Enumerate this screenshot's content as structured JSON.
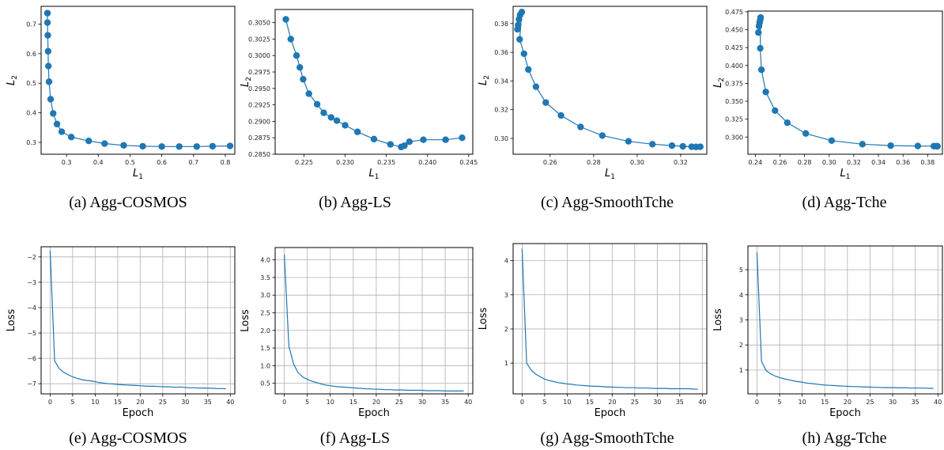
{
  "chart_data": [
    {
      "type": "line",
      "caption": "(a) Agg-COSMOS",
      "xlabel": "L",
      "xlabel_sub": "1",
      "ylabel": "L",
      "ylabel_sub": "2",
      "xlim": [
        0.22,
        0.83
      ],
      "ylim": [
        0.26,
        0.76
      ],
      "xticks": [
        0.3,
        0.4,
        0.5,
        0.6,
        0.7,
        0.8
      ],
      "yticks": [
        0.3,
        0.4,
        0.5,
        0.6,
        0.7
      ],
      "xtick_labels": [
        "0.3",
        "0.4",
        "0.5",
        "0.6",
        "0.7",
        "0.8"
      ],
      "ytick_labels": [
        "0.3",
        "0.4",
        "0.5",
        "0.6",
        "0.7"
      ],
      "grid": false,
      "markers": true,
      "color": "#1f77b4",
      "x": [
        0.24,
        0.24,
        0.241,
        0.242,
        0.243,
        0.245,
        0.25,
        0.258,
        0.27,
        0.285,
        0.315,
        0.37,
        0.42,
        0.48,
        0.54,
        0.6,
        0.655,
        0.71,
        0.76,
        0.815
      ],
      "y": [
        0.737,
        0.705,
        0.662,
        0.608,
        0.558,
        0.505,
        0.446,
        0.398,
        0.362,
        0.336,
        0.318,
        0.305,
        0.296,
        0.29,
        0.287,
        0.286,
        0.286,
        0.286,
        0.287,
        0.288
      ]
    },
    {
      "type": "line",
      "caption": "(b) Agg-LS",
      "xlabel": "L",
      "xlabel_sub": "1",
      "ylabel": "L",
      "ylabel_sub": "2",
      "xlim": [
        0.2215,
        0.2455
      ],
      "ylim": [
        0.285,
        0.307
      ],
      "xticks": [
        0.225,
        0.23,
        0.235,
        0.24,
        0.245
      ],
      "yticks": [
        0.285,
        0.2875,
        0.29,
        0.2925,
        0.295,
        0.2975,
        0.3,
        0.3025,
        0.305
      ],
      "xtick_labels": [
        "0.225",
        "0.230",
        "0.235",
        "0.240",
        "0.245"
      ],
      "ytick_labels": [
        "0.2850",
        "0.2875",
        "0.2900",
        "0.2925",
        "0.2950",
        "0.2975",
        "0.3000",
        "0.3025",
        "0.3050"
      ],
      "grid": false,
      "markers": true,
      "color": "#1f77b4",
      "x": [
        0.2228,
        0.2234,
        0.2241,
        0.2245,
        0.2249,
        0.2256,
        0.2266,
        0.2274,
        0.2283,
        0.229,
        0.23,
        0.2315,
        0.2335,
        0.2355,
        0.2368,
        0.2372,
        0.2378,
        0.2395,
        0.2422,
        0.2442
      ],
      "y": [
        0.3055,
        0.3025,
        0.3,
        0.2982,
        0.2964,
        0.2942,
        0.2926,
        0.2913,
        0.2906,
        0.2901,
        0.2894,
        0.2884,
        0.2873,
        0.2865,
        0.2861,
        0.2863,
        0.2869,
        0.2872,
        0.2872,
        0.2875
      ]
    },
    {
      "type": "line",
      "caption": "(c) Agg-SmoothTche",
      "xlabel": "L",
      "xlabel_sub": "1",
      "ylabel": "L",
      "ylabel_sub": "2",
      "xlim": [
        0.243,
        0.332
      ],
      "ylim": [
        0.289,
        0.392
      ],
      "xticks": [
        0.26,
        0.28,
        0.3,
        0.32
      ],
      "yticks": [
        0.3,
        0.32,
        0.34,
        0.36,
        0.38
      ],
      "xtick_labels": [
        "0.26",
        "0.28",
        "0.30",
        "0.32"
      ],
      "ytick_labels": [
        "0.30",
        "0.32",
        "0.34",
        "0.36",
        "0.38"
      ],
      "grid": false,
      "markers": true,
      "color": "#1f77b4",
      "x": [
        0.245,
        0.2453,
        0.2457,
        0.2462,
        0.247,
        0.246,
        0.248,
        0.25,
        0.2535,
        0.258,
        0.265,
        0.274,
        0.284,
        0.296,
        0.307,
        0.316,
        0.321,
        0.325,
        0.327,
        0.329
      ],
      "y": [
        0.376,
        0.379,
        0.383,
        0.386,
        0.388,
        0.369,
        0.359,
        0.348,
        0.336,
        0.325,
        0.316,
        0.308,
        0.302,
        0.298,
        0.296,
        0.295,
        0.2945,
        0.2942,
        0.2941,
        0.2942
      ]
    },
    {
      "type": "line",
      "caption": "(d) Agg-Tche",
      "xlabel": "L",
      "xlabel_sub": "1",
      "ylabel": "L",
      "ylabel_sub": "2",
      "xlim": [
        0.234,
        0.392
      ],
      "ylim": [
        0.276,
        0.476
      ],
      "xticks": [
        0.24,
        0.26,
        0.28,
        0.3,
        0.32,
        0.34,
        0.36,
        0.38
      ],
      "yticks": [
        0.3,
        0.325,
        0.35,
        0.375,
        0.4,
        0.425,
        0.45,
        0.475
      ],
      "xtick_labels": [
        "0.24",
        "0.26",
        "0.28",
        "0.30",
        "0.32",
        "0.34",
        "0.36",
        "0.38"
      ],
      "ytick_labels": [
        "0.300",
        "0.325",
        "0.350",
        "0.375",
        "0.400",
        "0.425",
        "0.450",
        "0.475"
      ],
      "grid": false,
      "markers": true,
      "color": "#1f77b4",
      "x": [
        0.2425,
        0.243,
        0.2435,
        0.244,
        0.2443,
        0.244,
        0.245,
        0.2485,
        0.256,
        0.266,
        0.281,
        0.302,
        0.327,
        0.35,
        0.372,
        0.385,
        0.387,
        0.388
      ],
      "y": [
        0.446,
        0.455,
        0.46,
        0.464,
        0.467,
        0.424,
        0.394,
        0.363,
        0.337,
        0.32,
        0.305,
        0.295,
        0.29,
        0.288,
        0.2875,
        0.2873,
        0.2872,
        0.2871
      ]
    },
    {
      "type": "line",
      "caption": "(e) Agg-COSMOS",
      "xlabel": "Epoch",
      "ylabel": "Loss",
      "xlim": [
        -2,
        41
      ],
      "ylim": [
        -7.4,
        -1.6
      ],
      "xticks": [
        0,
        5,
        10,
        15,
        20,
        25,
        30,
        35,
        40
      ],
      "yticks": [
        -7,
        -6,
        -5,
        -4,
        -3,
        -2
      ],
      "xtick_labels": [
        "0",
        "5",
        "10",
        "15",
        "20",
        "25",
        "30",
        "35",
        "40"
      ],
      "ytick_labels": [
        "−7",
        "−6",
        "−5",
        "−4",
        "−3",
        "−2"
      ],
      "grid": true,
      "markers": false,
      "color": "#1f77b4",
      "x": [
        0,
        1,
        2,
        3,
        4,
        5,
        6,
        7,
        8,
        9,
        10,
        11,
        12,
        13,
        14,
        15,
        16,
        17,
        18,
        19,
        20,
        21,
        22,
        23,
        24,
        25,
        26,
        27,
        28,
        29,
        30,
        31,
        32,
        33,
        34,
        35,
        36,
        37,
        38,
        39
      ],
      "y": [
        -1.75,
        -6.1,
        -6.4,
        -6.55,
        -6.65,
        -6.73,
        -6.79,
        -6.84,
        -6.87,
        -6.89,
        -6.92,
        -6.96,
        -6.98,
        -7.0,
        -7.01,
        -7.03,
        -7.04,
        -7.05,
        -7.06,
        -7.07,
        -7.08,
        -7.09,
        -7.1,
        -7.1,
        -7.11,
        -7.12,
        -7.12,
        -7.13,
        -7.14,
        -7.13,
        -7.15,
        -7.16,
        -7.16,
        -7.17,
        -7.17,
        -7.18,
        -7.18,
        -7.19,
        -7.19,
        -7.2
      ]
    },
    {
      "type": "line",
      "caption": "(f) Agg-LS",
      "xlabel": "Epoch",
      "ylabel": "Loss",
      "xlim": [
        -2,
        41
      ],
      "ylim": [
        0.2,
        4.35
      ],
      "xticks": [
        0,
        5,
        10,
        15,
        20,
        25,
        30,
        35,
        40
      ],
      "yticks": [
        0.5,
        1.0,
        1.5,
        2.0,
        2.5,
        3.0,
        3.5,
        4.0
      ],
      "xtick_labels": [
        "0",
        "5",
        "10",
        "15",
        "20",
        "25",
        "30",
        "35",
        "40"
      ],
      "ytick_labels": [
        "0.5",
        "1.0",
        "1.5",
        "2.0",
        "2.5",
        "3.0",
        "3.5",
        "4.0"
      ],
      "grid": true,
      "markers": false,
      "color": "#1f77b4",
      "x": [
        0,
        1,
        2,
        3,
        4,
        5,
        6,
        7,
        8,
        9,
        10,
        11,
        12,
        13,
        14,
        15,
        16,
        17,
        18,
        19,
        20,
        21,
        22,
        23,
        24,
        25,
        26,
        27,
        28,
        29,
        30,
        31,
        32,
        33,
        34,
        35,
        36,
        37,
        38,
        39
      ],
      "y": [
        4.15,
        1.55,
        1.05,
        0.8,
        0.68,
        0.61,
        0.56,
        0.52,
        0.48,
        0.45,
        0.43,
        0.41,
        0.4,
        0.39,
        0.38,
        0.37,
        0.36,
        0.35,
        0.34,
        0.34,
        0.33,
        0.33,
        0.32,
        0.32,
        0.31,
        0.31,
        0.31,
        0.3,
        0.3,
        0.3,
        0.3,
        0.29,
        0.29,
        0.29,
        0.29,
        0.28,
        0.28,
        0.28,
        0.28,
        0.28
      ]
    },
    {
      "type": "line",
      "caption": "(g) Agg-SmoothTche",
      "xlabel": "Epoch",
      "ylabel": "Loss",
      "xlim": [
        -2,
        41
      ],
      "ylim": [
        0.1,
        4.5
      ],
      "xticks": [
        0,
        5,
        10,
        15,
        20,
        25,
        30,
        35,
        40
      ],
      "yticks": [
        1,
        2,
        3,
        4
      ],
      "xtick_labels": [
        "0",
        "5",
        "10",
        "15",
        "20",
        "25",
        "30",
        "35",
        "40"
      ],
      "ytick_labels": [
        "1",
        "2",
        "3",
        "4"
      ],
      "grid": true,
      "markers": false,
      "color": "#1f77b4",
      "x": [
        0,
        1,
        2,
        3,
        4,
        5,
        6,
        7,
        8,
        9,
        10,
        11,
        12,
        13,
        14,
        15,
        16,
        17,
        18,
        19,
        20,
        21,
        22,
        23,
        24,
        25,
        26,
        27,
        28,
        29,
        30,
        31,
        32,
        33,
        34,
        35,
        36,
        37,
        38,
        39
      ],
      "y": [
        4.35,
        1.0,
        0.8,
        0.68,
        0.6,
        0.53,
        0.49,
        0.46,
        0.43,
        0.41,
        0.39,
        0.38,
        0.36,
        0.35,
        0.34,
        0.33,
        0.32,
        0.32,
        0.31,
        0.3,
        0.3,
        0.29,
        0.29,
        0.28,
        0.28,
        0.28,
        0.27,
        0.27,
        0.27,
        0.26,
        0.26,
        0.26,
        0.26,
        0.25,
        0.25,
        0.25,
        0.25,
        0.25,
        0.24,
        0.24
      ]
    },
    {
      "type": "line",
      "caption": "(h) Agg-Tche",
      "xlabel": "Epoch",
      "ylabel": "Loss",
      "xlim": [
        -2,
        41
      ],
      "ylim": [
        0.05,
        5.95
      ],
      "xticks": [
        0,
        5,
        10,
        15,
        20,
        25,
        30,
        35,
        40
      ],
      "yticks": [
        1,
        2,
        3,
        4,
        5
      ],
      "xtick_labels": [
        "0",
        "5",
        "10",
        "15",
        "20",
        "25",
        "30",
        "35",
        "40"
      ],
      "ytick_labels": [
        "1",
        "2",
        "3",
        "4",
        "5"
      ],
      "grid": true,
      "markers": false,
      "color": "#1f77b4",
      "x": [
        0,
        1,
        2,
        3,
        4,
        5,
        6,
        7,
        8,
        9,
        10,
        11,
        12,
        13,
        14,
        15,
        16,
        17,
        18,
        19,
        20,
        21,
        22,
        23,
        24,
        25,
        26,
        27,
        28,
        29,
        30,
        31,
        32,
        33,
        34,
        35,
        36,
        37,
        38,
        39
      ],
      "y": [
        5.7,
        1.35,
        0.98,
        0.85,
        0.76,
        0.7,
        0.65,
        0.61,
        0.57,
        0.54,
        0.51,
        0.48,
        0.46,
        0.44,
        0.42,
        0.4,
        0.39,
        0.38,
        0.37,
        0.36,
        0.35,
        0.34,
        0.34,
        0.33,
        0.32,
        0.32,
        0.31,
        0.31,
        0.3,
        0.3,
        0.3,
        0.29,
        0.29,
        0.29,
        0.28,
        0.28,
        0.28,
        0.28,
        0.27,
        0.27
      ]
    }
  ]
}
